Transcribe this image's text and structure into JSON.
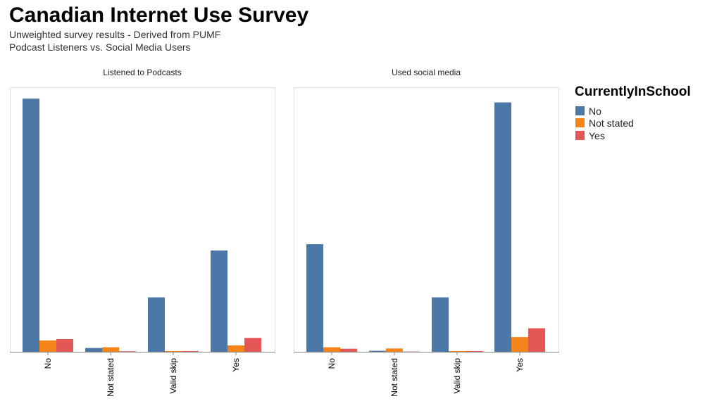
{
  "title": "Canadian Internet Use Survey",
  "subtitle_line1": "Unweighted survey results - Derived from PUMF",
  "subtitle_line2": "Podcast Listeners vs. Social Media Users",
  "legend": {
    "title": "CurrentlyInSchool",
    "items": [
      {
        "label": "No",
        "color": "#4c78a8"
      },
      {
        "label": "Not stated",
        "color": "#f58518"
      },
      {
        "label": "Yes",
        "color": "#e45756"
      }
    ]
  },
  "chart_data": [
    {
      "type": "bar",
      "title": "Listened to Podcasts",
      "categories": [
        "No",
        "Not stated",
        "Valid skip",
        "Yes"
      ],
      "series": [
        {
          "name": "No",
          "values": [
            100,
            1.5,
            21.5,
            40
          ]
        },
        {
          "name": "Not stated",
          "values": [
            4.5,
            1.8,
            0.3,
            2.5
          ]
        },
        {
          "name": "Yes",
          "values": [
            5,
            0.2,
            0.3,
            5.5
          ]
        }
      ],
      "ylim": [
        0,
        104.5
      ],
      "legend": "right",
      "grid": false
    },
    {
      "type": "bar",
      "title": "Used social media",
      "categories": [
        "No",
        "Not stated",
        "Valid skip",
        "Yes"
      ],
      "series": [
        {
          "name": "No",
          "values": [
            42.5,
            0.4,
            21.5,
            98.5
          ]
        },
        {
          "name": "Not stated",
          "values": [
            1.8,
            1.3,
            0.3,
            5.8
          ]
        },
        {
          "name": "Yes",
          "values": [
            1.2,
            0.1,
            0.3,
            9.3
          ]
        }
      ],
      "ylim": [
        0,
        104.5
      ],
      "legend": "right",
      "grid": false
    }
  ]
}
